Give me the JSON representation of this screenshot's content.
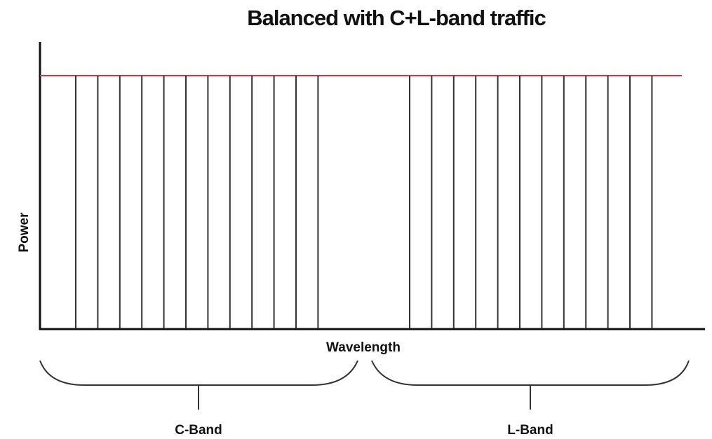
{
  "title": "Balanced with C+L-band traffic",
  "y_axis_label": "Power",
  "x_axis_label": "Wavelength",
  "bands": [
    {
      "label": "C-Band"
    },
    {
      "label": "L-Band"
    }
  ]
}
